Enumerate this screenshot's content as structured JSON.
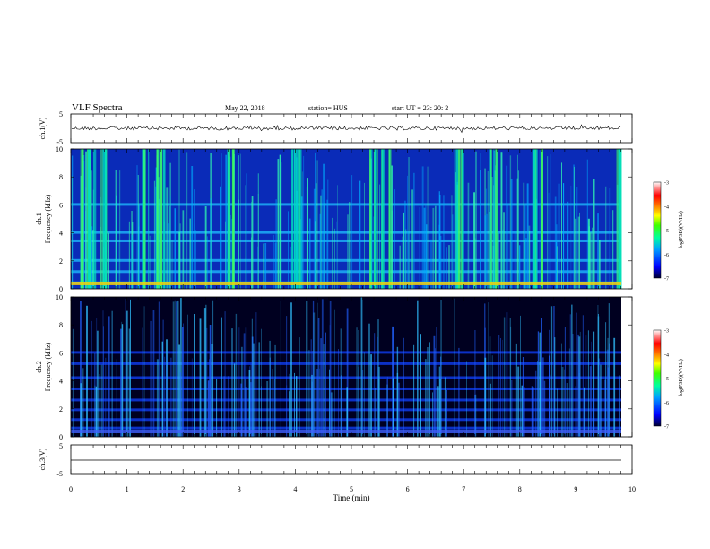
{
  "header": {
    "title": "VLF Spectra",
    "date": "May 22, 2018",
    "station": "station= HUS",
    "start": "start  UT  =   23: 20: 2"
  },
  "colors": {
    "spectrogram_scale": [
      "#000033",
      "#0000ff",
      "#00a0ff",
      "#00ffa0",
      "#40ff00",
      "#ffff00",
      "#ff8000",
      "#ff0000",
      "#ffffff"
    ],
    "background": "#ffffff"
  },
  "chart_data": [
    {
      "type": "line",
      "ylabel": "ch.1(V)",
      "ylim": [
        -5,
        5
      ],
      "ytick_labels": [
        "5",
        "-5"
      ],
      "xlim": [
        0,
        10
      ],
      "signal": "noisy waveform near 0 V"
    },
    {
      "type": "heatmap",
      "ylabel": "ch.1\nFrequency (kHz)",
      "ylabel_lines": [
        "ch.1",
        "Frequency (kHz)"
      ],
      "ylim": [
        0,
        10
      ],
      "ytick_labels": [
        "0",
        "2",
        "4",
        "6",
        "8",
        "10"
      ],
      "xlim": [
        0,
        10
      ],
      "colorbar": {
        "label": "log(PSD)(V²/Hz)",
        "range": [
          -7,
          -3
        ],
        "tick_labels": [
          "-3",
          "-4",
          "-5",
          "-6",
          "-7"
        ]
      },
      "bright_bursts_min": [
        0.25,
        0.35,
        0.55,
        1.3,
        1.6,
        2.85,
        4.0,
        5.4,
        5.6,
        6.9,
        7.5,
        8.3,
        9.8
      ],
      "horizontal_bands_khz": [
        0.4,
        1.2,
        2.0,
        3.4,
        4.0,
        6.0
      ]
    },
    {
      "type": "heatmap",
      "ylabel": "ch.2\nFrequency (kHz)",
      "ylabel_lines": [
        "ch.2",
        "Frequency (kHz)"
      ],
      "ylim": [
        0,
        10
      ],
      "ytick_labels": [
        "0",
        "2",
        "4",
        "6",
        "8",
        "10"
      ],
      "xlim": [
        0,
        10
      ],
      "colorbar": {
        "label": "log(PSD)(V²/Hz)",
        "range": [
          -7,
          -3
        ],
        "tick_labels": [
          "-3",
          "-4",
          "-5",
          "-6",
          "-7"
        ]
      },
      "horizontal_bands_khz": [
        0.6,
        1.2,
        1.9,
        2.6,
        3.4,
        4.2,
        5.2,
        6.0
      ]
    },
    {
      "type": "line",
      "ylabel": "ch.3(V)",
      "ylim": [
        -5,
        5
      ],
      "ytick_labels": [
        "5",
        "-5"
      ],
      "xlim": [
        0,
        10
      ],
      "signal": "flat line at 0 V"
    }
  ],
  "xaxis": {
    "label": "Time (min)",
    "tick_labels": [
      "0",
      "1",
      "2",
      "3",
      "4",
      "5",
      "6",
      "7",
      "8",
      "9",
      "10"
    ]
  }
}
